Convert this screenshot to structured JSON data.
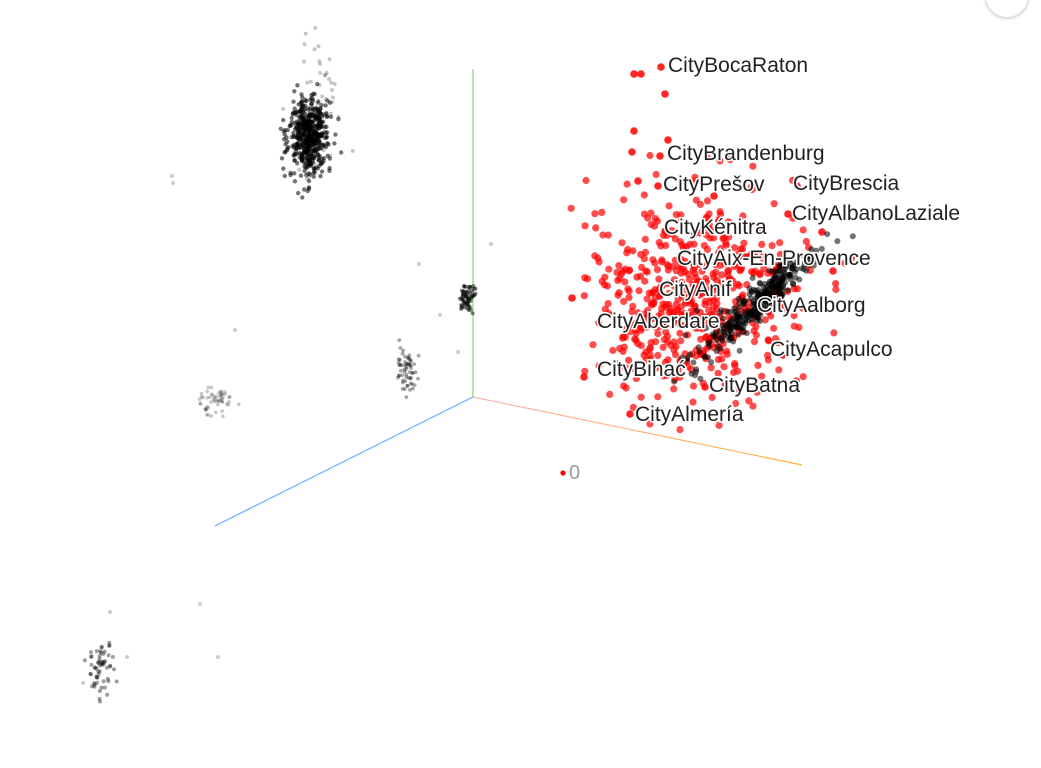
{
  "projector": {
    "origin_label": "0",
    "selected_color": "#ff0000",
    "unselected_color": "#000000",
    "axis_colors": {
      "y": "#85d96b",
      "x_start": "#ffb2b2",
      "x_end": "#ffb13a",
      "z": "#6ea8ff"
    },
    "labels": [
      "CityBocaRaton",
      "CityBrandenburg",
      "CityPrešov",
      "CityBrescia",
      "CityAlbanoLaziale",
      "CityKénitra",
      "CityAix-En-Provence",
      "CityAnif",
      "CityAalborg",
      "CityAberdare",
      "CityAcapulco",
      "CityBihać",
      "CityBatna",
      "CityAlmería"
    ]
  },
  "corner_button_icon": "more-icon"
}
